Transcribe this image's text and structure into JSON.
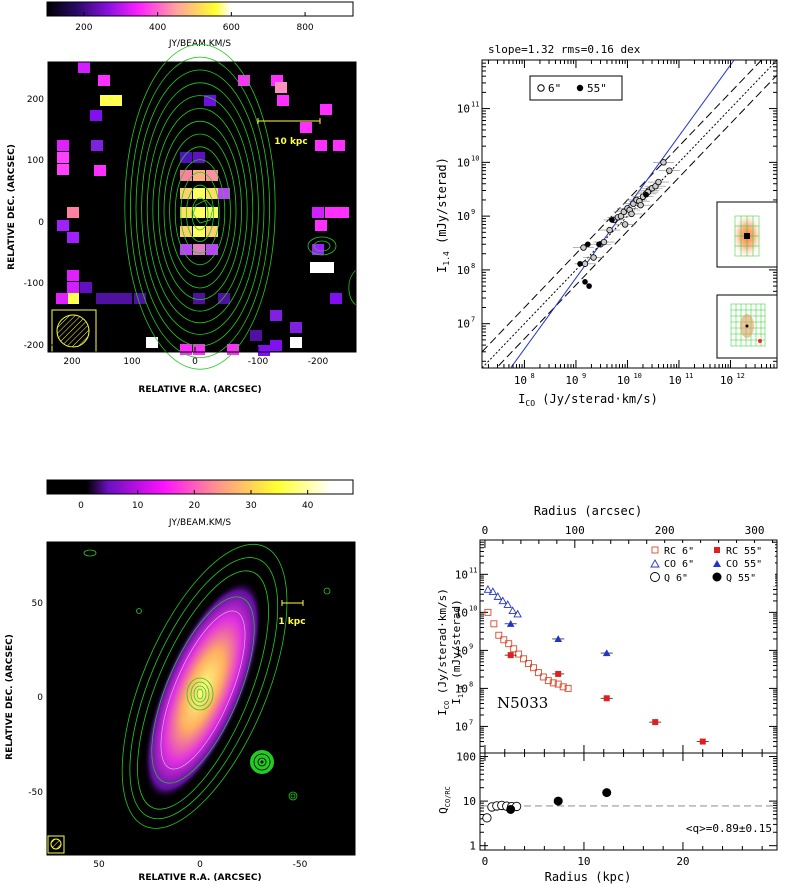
{
  "colors": {
    "contour": "#22cc22",
    "rc_color": "#d94a2a",
    "co_color": "#2233cc",
    "fit_line": "#2233cc",
    "yellow": "#ffff44"
  },
  "panel_a": {
    "colorbar": {
      "ticks": [
        "200",
        "400",
        "600",
        "800"
      ],
      "label": "JY/BEAM.KM/S",
      "range": [
        100,
        930
      ]
    },
    "scalebar_label": "10 kpc",
    "xlabel": "RELATIVE R.A. (ARCSEC)",
    "ylabel": "RELATIVE DEC. (ARCSEC)",
    "xticks": [
      "200",
      "100",
      "0",
      "-100",
      "-200"
    ],
    "yticks": [
      "200",
      "100",
      "0",
      "-100",
      "-200"
    ]
  },
  "panel_b": {
    "header": "slope=1.32 rms=0.16 dex",
    "legend": [
      "6\"",
      "55\""
    ],
    "xlabel_main": "I",
    "xlabel_sub": "CO",
    "xlabel_rest": " (Jy/sterad·km/s)",
    "ylabel_main": "I",
    "ylabel_sub": "1.4",
    "ylabel_rest": " (mJy/sterad)",
    "xticks": [
      "10",
      "10",
      "10",
      "10",
      "10"
    ],
    "xtick_exps": [
      "8",
      "9",
      "10",
      "11",
      "12"
    ],
    "yticks": [
      "10",
      "10",
      "10",
      "10",
      "10"
    ],
    "ytick_exps": [
      "7",
      "8",
      "9",
      "10",
      "11"
    ],
    "chart_data": {
      "type": "scatter",
      "x_scale": "log",
      "y_scale": "log",
      "xlim": [
        15000000.0,
        8000000000000.0
      ],
      "ylim": [
        1500000.0,
        800000000000.0
      ],
      "slope": 1.32,
      "rms_dex": 0.16,
      "series": [
        {
          "name": "6\"",
          "marker": "open-circle",
          "x": [
            1500000000.0,
            2200000000.0,
            3000000000.0,
            3500000000.0,
            4500000000.0,
            5500000000.0,
            6500000000.0,
            7500000000.0,
            8500000000.0,
            10000000000.0,
            11000000000.0,
            13000000000.0,
            15000000000.0,
            17000000000.0,
            20000000000.0,
            23000000000.0,
            26000000000.0,
            30000000000.0,
            35000000000.0,
            40000000000.0,
            50000000000.0,
            65000000000.0,
            12000000000.0,
            9000000000.0,
            25000000000.0,
            18000000000.0,
            1400000000.0
          ],
          "y": [
            130000000.0,
            170000000.0,
            300000000.0,
            330000000.0,
            550000000.0,
            850000000.0,
            950000000.0,
            1000000000.0,
            1200000000.0,
            1400000000.0,
            1300000000.0,
            1700000000.0,
            2000000000.0,
            1900000000.0,
            2300000000.0,
            2600000000.0,
            3000000000.0,
            3300000000.0,
            3600000000.0,
            4300000000.0,
            10000000000.0,
            7000000000.0,
            1100000000.0,
            700000000.0,
            2800000000.0,
            1600000000.0,
            260000000.0
          ]
        },
        {
          "name": "55\"",
          "marker": "filled-circle",
          "x": [
            1200000000.0,
            1500000000.0,
            1700000000.0,
            2800000000.0,
            5000000000.0,
            1800000000.0,
            23000000000.0
          ],
          "y": [
            130000000.0,
            60000000.0,
            300000000.0,
            300000000.0,
            850000000.0,
            50000000.0,
            2500000000.0
          ]
        }
      ]
    }
  },
  "panel_c": {
    "colorbar": {
      "ticks": [
        "0",
        "10",
        "20",
        "30",
        "40"
      ],
      "label": "JY/BEAM.KM/S",
      "range": [
        -6,
        48
      ]
    },
    "scalebar_label": "1 kpc",
    "xlabel": "RELATIVE R.A. (ARCSEC)",
    "ylabel": "RELATIVE DEC. (ARCSEC)",
    "xticks": [
      "50",
      "0",
      "-50"
    ],
    "yticks": [
      "50",
      "0",
      "-50"
    ]
  },
  "panel_d": {
    "top_axis_label": "Radius (arcsec)",
    "top_ticks": [
      "0",
      "100",
      "200",
      "300"
    ],
    "galaxy": "N5033",
    "legend": [
      "RC 6\"",
      "RC 55\"",
      "CO 6\"",
      "CO 55\"",
      "Q 6\"",
      "Q 55\""
    ],
    "ylabel_upper_main": "I",
    "ylabel_upper_sub": "CO",
    "ylabel_upper_rest": " (Jy/sterad·km/s)",
    "ylabel_lower_main": "I",
    "ylabel_lower_sub": "1.4",
    "ylabel_lower_rest": " (mJy/sterad)",
    "upper_yticks": [
      "10",
      "10",
      "10",
      "10",
      "10"
    ],
    "upper_ytick_exps": [
      "7",
      "8",
      "9",
      "10",
      "11"
    ],
    "q_label_main": "Q",
    "q_label_sub": "CO/RC",
    "q_yticks": [
      "1",
      "10",
      "100"
    ],
    "q_annotation": "<q>=0.89±0.15",
    "xlabel": "Radius (kpc)",
    "xticks": [
      "0",
      "10",
      "20"
    ],
    "chart_data": {
      "type": "scatter",
      "x_unit": "kpc",
      "xlim": [
        -0.5,
        29.5
      ],
      "top_xlim_arcsec": [
        -5.5,
        325
      ],
      "upper": {
        "y_scale": "log",
        "ylim": [
          2000000.0,
          800000000000.0
        ],
        "series": [
          {
            "name": "RC 6\"",
            "marker": "open-square",
            "x": [
              0.3,
              0.9,
              1.4,
              1.9,
              2.4,
              2.9,
              3.4,
              3.9,
              4.4,
              4.9,
              5.4,
              5.9,
              6.4,
              6.9,
              7.4,
              7.9,
              8.4
            ],
            "y": [
              10000000000.0,
              5000000000.0,
              2500000000.0,
              1900000000.0,
              1500000000.0,
              1100000000.0,
              800000000.0,
              600000000.0,
              450000000.0,
              350000000.0,
              260000000.0,
              200000000.0,
              160000000.0,
              140000000.0,
              130000000.0,
              110000000.0,
              100000000.0
            ]
          },
          {
            "name": "RC 55\"",
            "marker": "filled-square",
            "x": [
              2.6,
              7.4,
              12.3,
              17.2,
              22.0
            ],
            "y": [
              750000000.0,
              240000000.0,
              55000000.0,
              13000000.0,
              4000000.0
            ]
          },
          {
            "name": "CO 6\"",
            "marker": "open-triangle",
            "x": [
              0.3,
              0.8,
              1.3,
              1.8,
              2.3,
              2.8,
              3.3
            ],
            "y": [
              40000000000.0,
              35000000000.0,
              26000000000.0,
              20000000000.0,
              16000000000.0,
              11000000000.0,
              9000000000.0
            ]
          },
          {
            "name": "CO 55\"",
            "marker": "filled-triangle",
            "x": [
              2.6,
              7.4,
              12.3
            ],
            "y": [
              5000000000.0,
              2000000000.0,
              850000000.0
            ]
          }
        ]
      },
      "lower": {
        "y_scale": "log",
        "ylim": [
          0.8,
          120
        ],
        "mean_line": 7.8,
        "series": [
          {
            "name": "Q 6\"",
            "marker": "open-circle",
            "x": [
              0.2,
              0.7,
              1.2,
              1.7,
              2.2,
              2.7,
              3.2
            ],
            "y": [
              4.2,
              7.4,
              7.8,
              8.0,
              7.7,
              7.5,
              7.6
            ]
          },
          {
            "name": "Q 55\"",
            "marker": "filled-circle",
            "x": [
              2.6,
              7.4,
              12.3
            ],
            "y": [
              6.5,
              10.0,
              15.5
            ]
          }
        ]
      }
    }
  }
}
